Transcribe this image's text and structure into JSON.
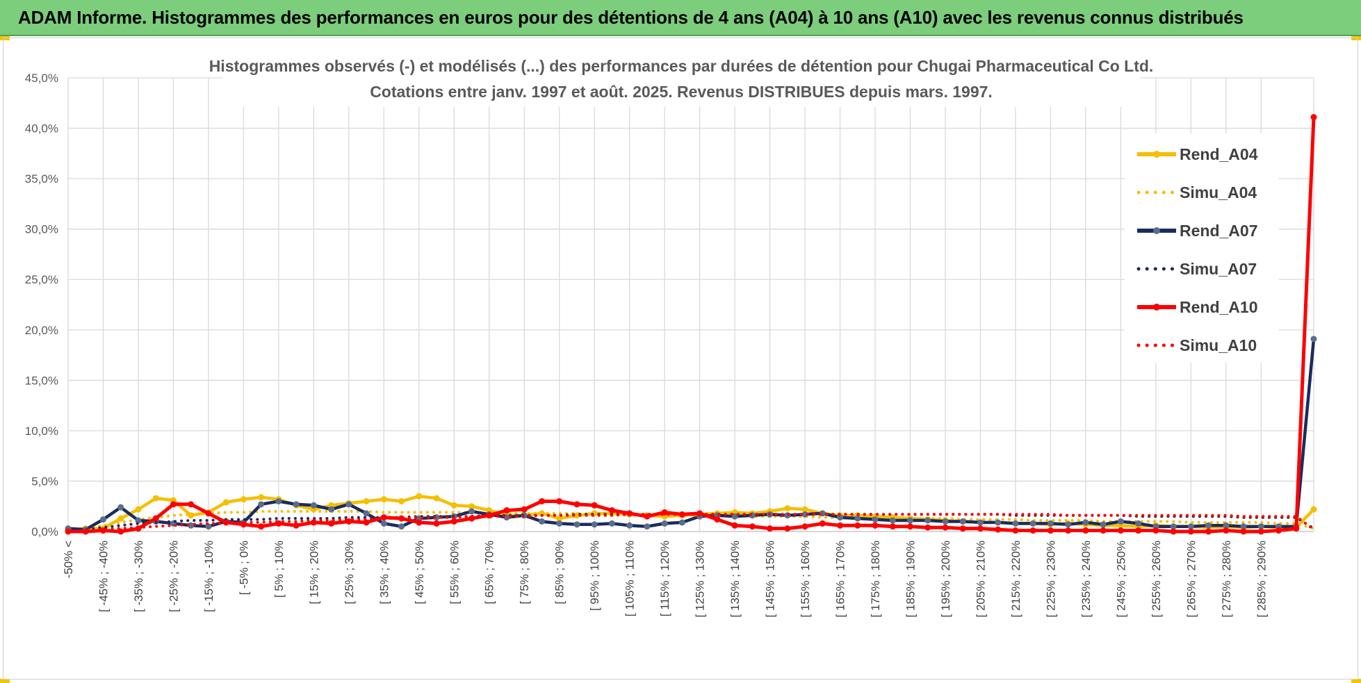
{
  "banner": {
    "title": "ADAM Informe. Histogrammes des performances en euros pour des détentions de 4 ans (A04) à 10 ans (A10) avec les revenus connus distribués"
  },
  "colors": {
    "banner_bg": "#7ccd7c",
    "yellow": "#f5bf00",
    "navy": "#1a2b5e",
    "red": "#ff0000",
    "grid": "#d9d9d9"
  },
  "chart_data": {
    "type": "line",
    "title_line1": "Histogrammes observés (-) et modélisés (...) des performances par durées de détention pour Chugai Pharmaceutical Co Ltd.",
    "title_line2": "Cotations entre janv. 1997 et août. 2025. Revenus DISTRIBUES depuis mars. 1997.",
    "xlabel": "",
    "ylabel": "",
    "ylim": [
      0,
      45
    ],
    "y_ticks": [
      "0,0%",
      "5,0%",
      "10,0%",
      "15,0%",
      "20,0%",
      "25,0%",
      "30,0%",
      "35,0%",
      "40,0%",
      "45,0%"
    ],
    "grid": true,
    "legend_position": "right",
    "x_tick_labels": [
      "-50% <",
      "[ -45% ; -40%",
      "[ -35% ; -30%",
      "[ -25% ; -20%",
      "[ -15% ; -10%",
      "[ -5% ; 0%",
      "[ 5% ; 10%",
      "[ 15% ; 20%",
      "[ 25% ; 30%",
      "[ 35% ; 40%",
      "[ 45% ; 50%",
      "[ 55% ; 60%",
      "[ 65% ; 70%",
      "[ 75% ; 80%",
      "[ 85% ; 90%",
      "[ 95% ; 100%",
      "[ 105% ; 110%",
      "[ 115% ; 120%",
      "[ 125% ; 130%",
      "[ 135% ; 140%",
      "[ 145% ; 150%",
      "[ 155% ; 160%",
      "[ 165% ; 170%",
      "[ 175% ; 180%",
      "[ 185% ; 190%",
      "[ 195% ; 200%",
      "[ 205% ; 210%",
      "[ 215% ; 220%",
      "[ 225% ; 230%",
      "[ 235% ; 240%",
      "[ 245% ; 250%",
      "[ 255% ; 260%",
      "[ 265% ; 270%",
      "[ 275% ; 280%",
      "[ 285% ; 290%"
    ],
    "series": [
      {
        "name": "Rend_A04",
        "style": "solid",
        "color": "#f5bf00",
        "values": [
          0.1,
          0.3,
          0.3,
          1.3,
          2.2,
          3.3,
          3.1,
          1.6,
          1.9,
          2.9,
          3.2,
          3.4,
          3.2,
          2.6,
          2.2,
          2.6,
          2.8,
          3.0,
          3.2,
          3.0,
          3.5,
          3.3,
          2.6,
          2.5,
          2.1,
          1.6,
          1.6,
          1.8,
          1.3,
          1.6,
          1.8,
          1.8,
          1.7,
          1.6,
          1.5,
          1.6,
          1.7,
          1.8,
          1.9,
          1.8,
          2.0,
          2.3,
          2.2,
          1.8,
          1.6,
          1.6,
          1.5,
          1.4,
          1.3,
          1.2,
          1.1,
          1.0,
          0.9,
          0.9,
          0.8,
          0.8,
          0.7,
          0.8,
          0.7,
          0.6,
          0.6,
          0.5,
          0.6,
          0.5,
          0.5,
          0.4,
          0.5,
          0.4,
          0.5,
          0.4,
          0.4,
          2.2
        ]
      },
      {
        "name": "Simu_A04",
        "style": "dotted",
        "color": "#f5bf00",
        "values": [
          0.05,
          0.3,
          0.6,
          0.9,
          1.2,
          1.4,
          1.6,
          1.7,
          1.8,
          1.9,
          1.9,
          2.0,
          2.0,
          2.0,
          2.0,
          2.0,
          2.0,
          2.0,
          1.9,
          1.9,
          1.9,
          1.9,
          1.9,
          1.9,
          1.8,
          1.8,
          1.8,
          1.8,
          1.8,
          1.8,
          1.7,
          1.7,
          1.7,
          1.7,
          1.7,
          1.6,
          1.6,
          1.6,
          1.6,
          1.5,
          1.5,
          1.5,
          1.5,
          1.4,
          1.4,
          1.4,
          1.4,
          1.3,
          1.3,
          1.3,
          1.3,
          1.2,
          1.2,
          1.2,
          1.2,
          1.1,
          1.1,
          1.1,
          1.1,
          1.0,
          1.0,
          1.0,
          1.0,
          1.0,
          0.9,
          0.9,
          0.9,
          0.9,
          0.9,
          0.8,
          0.8,
          0.3
        ]
      },
      {
        "name": "Rend_A07",
        "style": "solid",
        "color": "#1a2b5e",
        "values": [
          0.3,
          0.2,
          1.2,
          2.4,
          1.1,
          1.0,
          0.8,
          0.6,
          0.5,
          1.0,
          0.9,
          2.7,
          3.0,
          2.7,
          2.6,
          2.2,
          2.7,
          1.8,
          0.8,
          0.5,
          1.3,
          1.4,
          1.5,
          2.0,
          1.7,
          1.4,
          1.6,
          1.0,
          0.8,
          0.7,
          0.7,
          0.8,
          0.6,
          0.5,
          0.8,
          0.9,
          1.5,
          1.6,
          1.5,
          1.6,
          1.7,
          1.6,
          1.7,
          1.8,
          1.4,
          1.3,
          1.2,
          1.1,
          1.1,
          1.1,
          1.0,
          1.0,
          0.9,
          0.9,
          0.8,
          0.8,
          0.8,
          0.7,
          0.9,
          0.7,
          1.0,
          0.8,
          0.5,
          0.5,
          0.5,
          0.6,
          0.6,
          0.5,
          0.5,
          0.5,
          0.5,
          19.1
        ]
      },
      {
        "name": "Simu_A07",
        "style": "dotted",
        "color": "#1a2b5e",
        "values": [
          0.05,
          0.2,
          0.4,
          0.6,
          0.8,
          0.9,
          1.0,
          1.1,
          1.1,
          1.2,
          1.2,
          1.2,
          1.3,
          1.3,
          1.3,
          1.3,
          1.4,
          1.4,
          1.4,
          1.4,
          1.5,
          1.5,
          1.5,
          1.5,
          1.6,
          1.6,
          1.6,
          1.6,
          1.6,
          1.7,
          1.7,
          1.7,
          1.7,
          1.7,
          1.7,
          1.7,
          1.7,
          1.7,
          1.7,
          1.7,
          1.7,
          1.7,
          1.7,
          1.7,
          1.7,
          1.7,
          1.7,
          1.7,
          1.7,
          1.7,
          1.7,
          1.7,
          1.7,
          1.7,
          1.6,
          1.6,
          1.6,
          1.6,
          1.6,
          1.6,
          1.6,
          1.5,
          1.5,
          1.5,
          1.5,
          1.5,
          1.5,
          1.4,
          1.4,
          1.4,
          1.4,
          0.3
        ]
      },
      {
        "name": "Rend_A10",
        "style": "solid",
        "color": "#ff0000",
        "values": [
          0.0,
          0.0,
          0.1,
          0.0,
          0.3,
          1.3,
          2.7,
          2.7,
          1.8,
          0.9,
          0.7,
          0.5,
          0.8,
          0.6,
          0.9,
          0.8,
          1.0,
          0.9,
          1.4,
          1.3,
          0.9,
          0.8,
          1.0,
          1.3,
          1.6,
          2.1,
          2.2,
          3.0,
          3.0,
          2.7,
          2.6,
          2.1,
          1.8,
          1.5,
          1.9,
          1.7,
          1.8,
          1.2,
          0.6,
          0.5,
          0.3,
          0.3,
          0.5,
          0.8,
          0.6,
          0.6,
          0.6,
          0.5,
          0.5,
          0.4,
          0.4,
          0.3,
          0.3,
          0.2,
          0.1,
          0.1,
          0.1,
          0.1,
          0.1,
          0.1,
          0.1,
          0.1,
          0.1,
          0.0,
          0.0,
          0.0,
          0.1,
          0.0,
          0.0,
          0.1,
          0.3,
          41.1
        ]
      },
      {
        "name": "Simu_A10",
        "style": "dotted",
        "color": "#ff0000",
        "values": [
          0.0,
          0.1,
          0.2,
          0.3,
          0.4,
          0.5,
          0.6,
          0.7,
          0.8,
          0.8,
          0.9,
          0.9,
          1.0,
          1.0,
          1.1,
          1.1,
          1.2,
          1.2,
          1.3,
          1.3,
          1.4,
          1.4,
          1.4,
          1.5,
          1.5,
          1.5,
          1.5,
          1.6,
          1.6,
          1.6,
          1.6,
          1.6,
          1.7,
          1.7,
          1.7,
          1.7,
          1.7,
          1.7,
          1.7,
          1.7,
          1.7,
          1.7,
          1.7,
          1.7,
          1.7,
          1.7,
          1.7,
          1.7,
          1.7,
          1.7,
          1.7,
          1.7,
          1.7,
          1.7,
          1.7,
          1.7,
          1.7,
          1.6,
          1.6,
          1.6,
          1.6,
          1.6,
          1.6,
          1.6,
          1.6,
          1.6,
          1.6,
          1.5,
          1.5,
          1.5,
          1.5,
          0.2
        ]
      }
    ]
  }
}
